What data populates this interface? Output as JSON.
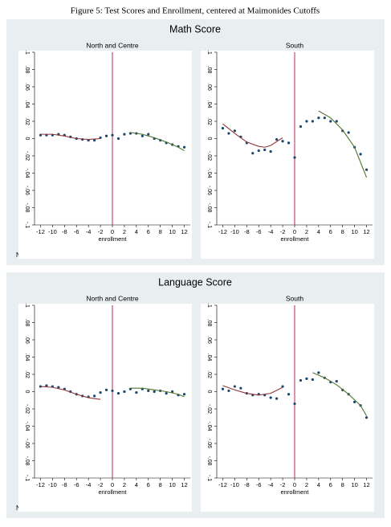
{
  "figure": {
    "caption": "Figure 5: Test Scores and Enrollment, centered at Maimonides Cutoffs"
  },
  "blocks": [
    {
      "title": "Math Score",
      "note": "Note: graphs computed from residuals"
    },
    {
      "title": "Language Score",
      "note": "Note: graphs computed from residuals"
    }
  ],
  "chart_data": [
    {
      "type": "scatter",
      "title": "North and Centre",
      "xlabel": "enrollment",
      "cutoff": 0,
      "cutoff_color": "#c0245a",
      "xlim": [
        -13,
        13
      ],
      "xticks": [
        -12,
        -10,
        -8,
        -6,
        -4,
        -2,
        0,
        2,
        4,
        6,
        8,
        10,
        12
      ],
      "ylim": [
        -0.1,
        0.1
      ],
      "yticks": [
        {
          "value": -0.1,
          "label": "-.1"
        },
        {
          "value": -0.08,
          "label": "-.08"
        },
        {
          "value": -0.06,
          "label": "-.06"
        },
        {
          "value": -0.04,
          "label": "-.04"
        },
        {
          "value": -0.02,
          "label": "-.02"
        },
        0,
        {
          "value": 0.02,
          "label": ".02"
        },
        {
          "value": 0.04,
          "label": ".04"
        },
        {
          "value": 0.06,
          "label": ".06"
        },
        {
          "value": 0.08,
          "label": ".08"
        },
        {
          "value": 0.1,
          "label": ".1"
        }
      ],
      "series": [
        {
          "type": "scatter",
          "color": "#1a476f",
          "x": [
            -12,
            -11,
            -10,
            -9,
            -8,
            -7,
            -6,
            -5,
            -4,
            -3,
            -2,
            -1,
            0,
            1,
            2,
            3,
            4,
            5,
            6,
            7,
            8,
            9,
            10,
            11,
            12
          ],
          "values": [
            0.004,
            0.004,
            0.004,
            0.005,
            0.004,
            0.002,
            0.0,
            -0.001,
            -0.002,
            -0.002,
            0.001,
            0.003,
            0.004,
            0.0,
            0.005,
            0.006,
            0.006,
            0.003,
            0.005,
            0.0,
            -0.002,
            -0.005,
            -0.007,
            -0.009,
            -0.01
          ]
        },
        {
          "type": "line",
          "color": "#90353b",
          "x": [
            -12,
            -10,
            -8,
            -6,
            -4,
            -2
          ],
          "values": [
            0.005,
            0.005,
            0.003,
            0.0,
            -0.001,
            0.0
          ]
        },
        {
          "type": "line",
          "color": "#55752f",
          "x": [
            3,
            5,
            7,
            9,
            11,
            12
          ],
          "values": [
            0.007,
            0.005,
            0.001,
            -0.004,
            -0.01,
            -0.014
          ]
        }
      ]
    },
    {
      "type": "scatter",
      "title": "South",
      "xlabel": "enrollment",
      "cutoff": 0,
      "cutoff_color": "#c0245a",
      "xlim": [
        -13,
        13
      ],
      "xticks": [
        -12,
        -10,
        -8,
        -6,
        -4,
        -2,
        0,
        2,
        4,
        6,
        8,
        10,
        12
      ],
      "ylim": [
        -0.1,
        0.1
      ],
      "yticks": [
        {
          "value": -0.1,
          "label": "-.1"
        },
        {
          "value": -0.08,
          "label": "-.08"
        },
        {
          "value": -0.06,
          "label": "-.06"
        },
        {
          "value": -0.04,
          "label": "-.04"
        },
        {
          "value": -0.02,
          "label": "-.02"
        },
        0,
        {
          "value": 0.02,
          "label": ".02"
        },
        {
          "value": 0.04,
          "label": ".04"
        },
        {
          "value": 0.06,
          "label": ".06"
        },
        {
          "value": 0.08,
          "label": ".08"
        },
        {
          "value": 0.1,
          "label": ".1"
        }
      ],
      "series": [
        {
          "type": "scatter",
          "color": "#1a476f",
          "x": [
            -12,
            -11,
            -10,
            -9,
            -8,
            -7,
            -6,
            -5,
            -4,
            -3,
            -2,
            -1,
            0,
            1,
            2,
            3,
            4,
            5,
            6,
            7,
            8,
            9,
            10,
            11,
            12
          ],
          "values": [
            0.012,
            0.006,
            0.009,
            0.002,
            -0.005,
            -0.017,
            -0.014,
            -0.013,
            -0.015,
            -0.001,
            -0.003,
            -0.005,
            -0.022,
            0.014,
            0.02,
            0.02,
            0.024,
            0.024,
            0.02,
            0.02,
            0.009,
            0.007,
            -0.01,
            -0.018,
            -0.036
          ]
        },
        {
          "type": "line",
          "color": "#90353b",
          "x": [
            -12,
            -10,
            -8,
            -6,
            -5,
            -4,
            -2
          ],
          "values": [
            0.017,
            0.006,
            -0.004,
            -0.009,
            -0.01,
            -0.008,
            0.001
          ]
        },
        {
          "type": "line",
          "color": "#55752f",
          "x": [
            4,
            6,
            8,
            10,
            12
          ],
          "values": [
            0.032,
            0.024,
            0.01,
            -0.01,
            -0.045
          ]
        }
      ]
    },
    {
      "type": "scatter",
      "title": "North and Centre",
      "xlabel": "enrollment",
      "cutoff": 0,
      "cutoff_color": "#c0245a",
      "xlim": [
        -13,
        13
      ],
      "xticks": [
        -12,
        -10,
        -8,
        -6,
        -4,
        -2,
        0,
        2,
        4,
        6,
        8,
        10,
        12
      ],
      "ylim": [
        -0.1,
        0.1
      ],
      "yticks": [
        {
          "value": -0.1,
          "label": "-.1"
        },
        {
          "value": -0.08,
          "label": "-.08"
        },
        {
          "value": -0.06,
          "label": "-.06"
        },
        {
          "value": -0.04,
          "label": "-.04"
        },
        {
          "value": -0.02,
          "label": "-.02"
        },
        0,
        {
          "value": 0.02,
          "label": ".02"
        },
        {
          "value": 0.04,
          "label": ".04"
        },
        {
          "value": 0.06,
          "label": ".06"
        },
        {
          "value": 0.08,
          "label": ".08"
        },
        {
          "value": 0.1,
          "label": ".1"
        }
      ],
      "series": [
        {
          "type": "scatter",
          "color": "#1a476f",
          "x": [
            -12,
            -11,
            -10,
            -9,
            -8,
            -7,
            -6,
            -5,
            -4,
            -3,
            -2,
            -1,
            0,
            1,
            2,
            3,
            4,
            5,
            6,
            7,
            8,
            9,
            10,
            11,
            12
          ],
          "values": [
            0.006,
            0.007,
            0.006,
            0.005,
            0.003,
            0.0,
            -0.003,
            -0.005,
            -0.006,
            -0.005,
            -0.001,
            0.002,
            0.001,
            -0.002,
            0.0,
            0.003,
            -0.001,
            0.003,
            0.001,
            0.0,
            0.001,
            -0.002,
            0.0,
            -0.004,
            -0.003
          ]
        },
        {
          "type": "line",
          "color": "#90353b",
          "x": [
            -12,
            -10,
            -8,
            -6,
            -4,
            -2
          ],
          "values": [
            0.006,
            0.005,
            0.002,
            -0.003,
            -0.007,
            -0.009
          ]
        },
        {
          "type": "line",
          "color": "#55752f",
          "x": [
            3,
            5,
            7,
            9,
            11,
            12
          ],
          "values": [
            0.004,
            0.004,
            0.002,
            0.0,
            -0.003,
            -0.006
          ]
        }
      ]
    },
    {
      "type": "scatter",
      "title": "South",
      "xlabel": "enrollment",
      "cutoff": 0,
      "cutoff_color": "#c0245a",
      "xlim": [
        -13,
        13
      ],
      "xticks": [
        -12,
        -10,
        -8,
        -6,
        -4,
        -2,
        0,
        2,
        4,
        6,
        8,
        10,
        12
      ],
      "ylim": [
        -0.1,
        0.1
      ],
      "yticks": [
        {
          "value": -0.1,
          "label": "-.1"
        },
        {
          "value": -0.08,
          "label": "-.08"
        },
        {
          "value": -0.06,
          "label": "-.06"
        },
        {
          "value": -0.04,
          "label": "-.04"
        },
        {
          "value": -0.02,
          "label": "-.02"
        },
        0,
        {
          "value": 0.02,
          "label": ".02"
        },
        {
          "value": 0.04,
          "label": ".04"
        },
        {
          "value": 0.06,
          "label": ".06"
        },
        {
          "value": 0.08,
          "label": ".08"
        },
        {
          "value": 0.1,
          "label": ".1"
        }
      ],
      "series": [
        {
          "type": "scatter",
          "color": "#1a476f",
          "x": [
            -12,
            -11,
            -10,
            -9,
            -8,
            -7,
            -6,
            -5,
            -4,
            -3,
            -2,
            -1,
            0,
            1,
            2,
            3,
            4,
            5,
            6,
            7,
            8,
            9,
            10,
            11,
            12
          ],
          "values": [
            0.003,
            0.001,
            0.006,
            0.004,
            -0.002,
            -0.004,
            -0.003,
            -0.004,
            -0.007,
            -0.008,
            0.006,
            -0.003,
            -0.014,
            0.013,
            0.015,
            0.014,
            0.022,
            0.016,
            0.011,
            0.012,
            0.002,
            -0.003,
            -0.012,
            -0.016,
            -0.03
          ]
        },
        {
          "type": "line",
          "color": "#90353b",
          "x": [
            -12,
            -10,
            -8,
            -6,
            -4,
            -2
          ],
          "values": [
            0.007,
            0.002,
            -0.002,
            -0.004,
            -0.002,
            0.005
          ]
        },
        {
          "type": "line",
          "color": "#55752f",
          "x": [
            3,
            5,
            7,
            9,
            11,
            12
          ],
          "values": [
            0.022,
            0.016,
            0.008,
            -0.003,
            -0.016,
            -0.028
          ]
        }
      ]
    }
  ]
}
